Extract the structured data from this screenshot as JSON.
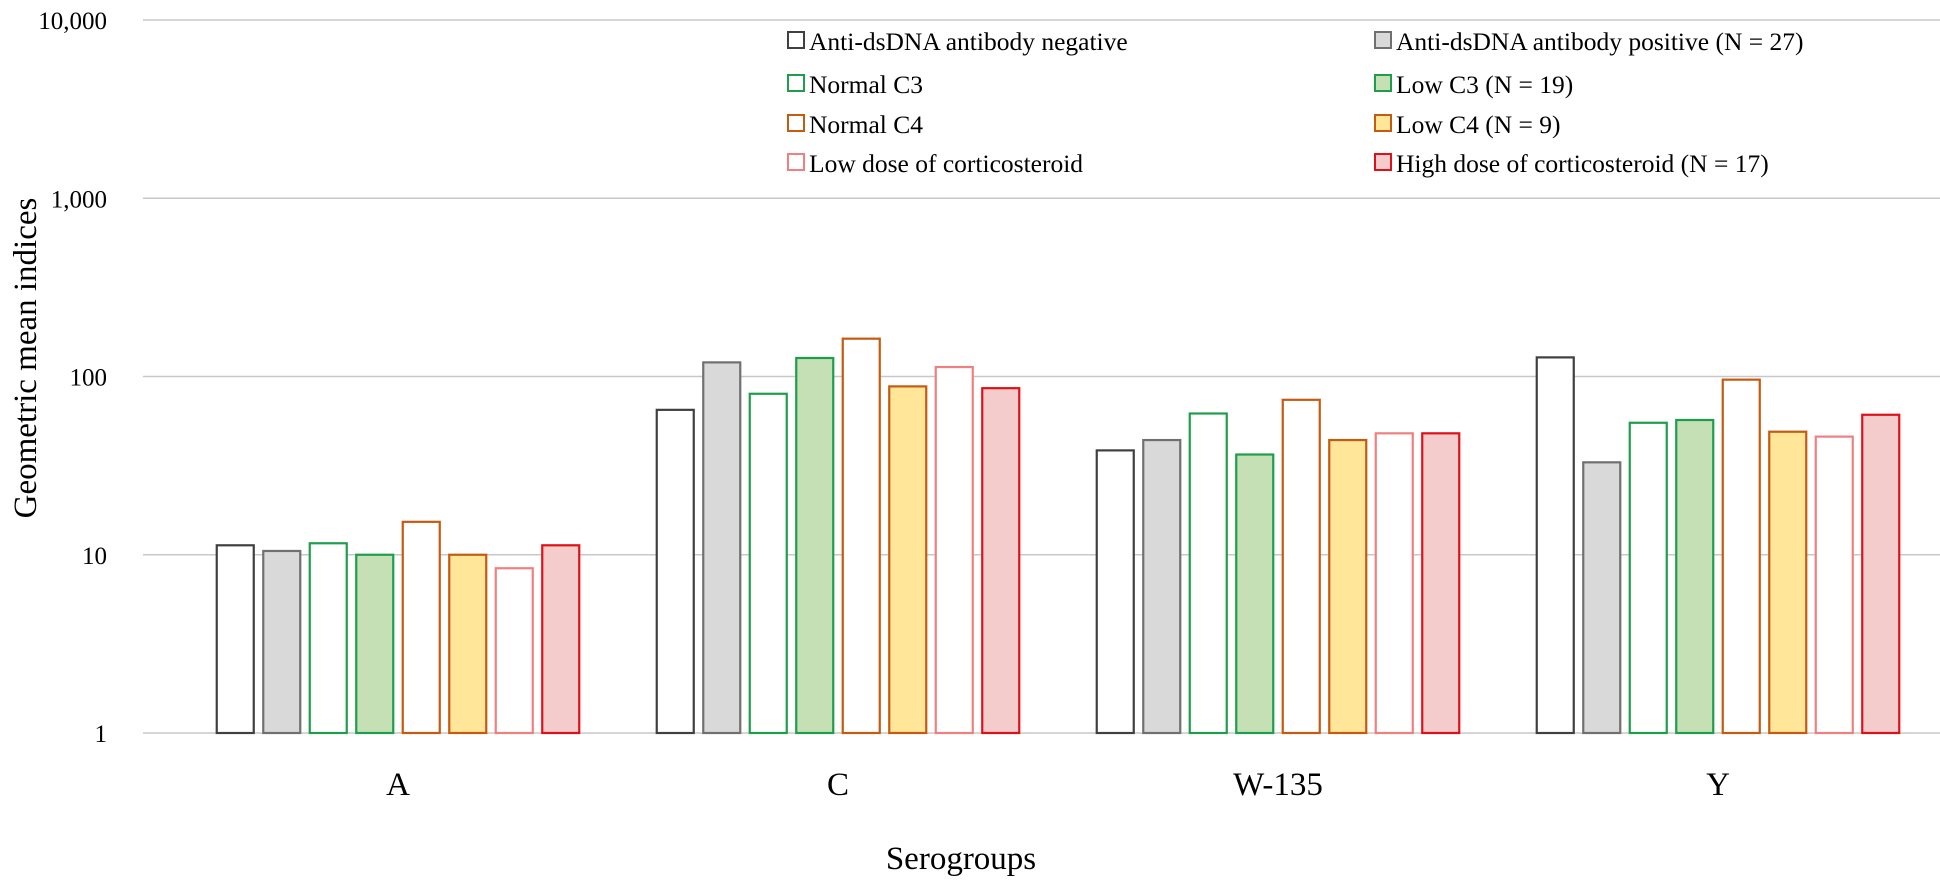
{
  "chart_data": {
    "type": "bar",
    "y_scale": "log",
    "ylim": [
      1,
      10000
    ],
    "y_ticks": [
      {
        "value": 1,
        "label": "1"
      },
      {
        "value": 10,
        "label": "10"
      },
      {
        "value": 100,
        "label": "100"
      },
      {
        "value": 1000,
        "label": "1,000"
      },
      {
        "value": 10000,
        "label": "10,000"
      }
    ],
    "xlabel": "Serogroups",
    "ylabel": "Geometric mean indices",
    "grid": "horizontal",
    "legend_position": "top-right",
    "categories": [
      "A",
      "C",
      "W-135",
      "Y"
    ],
    "series": [
      {
        "name": "Anti-dsDNA antibody negative",
        "stroke": "#404040",
        "fill": "#ffffff",
        "values": [
          11.3,
          65,
          38.5,
          128
        ]
      },
      {
        "name": "Anti-dsDNA antibody positive (N = 27)",
        "stroke": "#707070",
        "fill": "#d9d9d9",
        "values": [
          10.5,
          120,
          44,
          33
        ]
      },
      {
        "name": "Normal C3",
        "stroke": "#1e9e4a",
        "fill": "#ffffff",
        "values": [
          11.6,
          80,
          62,
          55
        ]
      },
      {
        "name": "Low C3 (N = 19)",
        "stroke": "#1e9e4a",
        "fill": "#c5e0b4",
        "values": [
          10,
          127,
          36.5,
          57
        ]
      },
      {
        "name": "Normal C4",
        "stroke": "#c55a11",
        "fill": "#ffffff",
        "values": [
          15.3,
          163,
          74,
          96
        ]
      },
      {
        "name": "Low C4 (N = 9)",
        "stroke": "#c55a11",
        "fill": "#ffe699",
        "values": [
          10,
          88,
          44,
          49
        ]
      },
      {
        "name": "Low dose of corticosteroid",
        "stroke": "#f08080",
        "fill": "#ffffff",
        "values": [
          8.4,
          113,
          48,
          46
        ]
      },
      {
        "name": "High dose of corticosteroid (N = 17)",
        "stroke": "#e0101a",
        "fill": "#f4cccc",
        "values": [
          11.3,
          86,
          48,
          61
        ]
      }
    ]
  }
}
